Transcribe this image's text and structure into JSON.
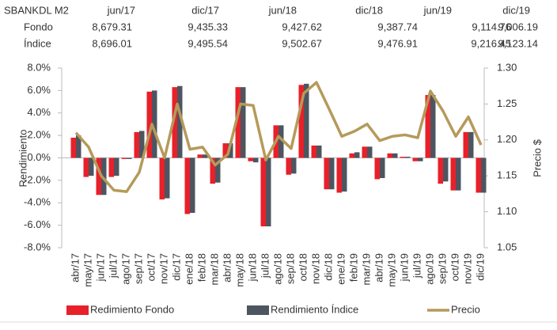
{
  "table": {
    "columns": [
      "SBANKDL M2",
      "jun/17",
      "dic/17",
      "jun/18",
      "dic/18",
      "jun/19",
      "dic/19"
    ],
    "rows": [
      [
        "Fondo",
        "8,679.31",
        "9,435.33",
        "9,427.62",
        "9,387.74",
        "9,114.76",
        "9,006.19"
      ],
      [
        "Índice",
        "8,696.01",
        "9,495.54",
        "9,502.67",
        "9,476.91",
        "9,216.45",
        "9,123.14"
      ]
    ]
  },
  "chart_data": {
    "type": "bar",
    "categories": [
      "abr/17",
      "may/17",
      "jun/17",
      "jul/17",
      "ago/17",
      "sep/17",
      "oct/17",
      "nov/17",
      "dic/17",
      "ene/18",
      "feb/18",
      "mar/18",
      "abr/18",
      "may/18",
      "jun/18",
      "jul/18",
      "ago/18",
      "sep/18",
      "oct/18",
      "nov/18",
      "dic/18",
      "ene/19",
      "feb/19",
      "mar/19",
      "abr/19",
      "may/19",
      "jun/19",
      "jul/19",
      "ago/19",
      "sep/19",
      "oct/19",
      "nov/19",
      "dic/19"
    ],
    "series": [
      {
        "name": "Redimiento Fondo",
        "type": "bar",
        "color": "#e8202a",
        "values": [
          1.8,
          -1.7,
          -3.3,
          -1.7,
          -0.1,
          2.3,
          5.9,
          -3.7,
          6.3,
          -5.0,
          0.3,
          -2.3,
          1.3,
          6.3,
          -0.3,
          -6.1,
          2.9,
          -1.5,
          6.5,
          1.1,
          -2.8,
          -3.1,
          0.4,
          1.0,
          -1.9,
          0.4,
          0.1,
          -0.3,
          5.6,
          -2.3,
          -2.9,
          2.3,
          -3.1
        ]
      },
      {
        "name": "Rendimiento Índice",
        "type": "bar",
        "color": "#4d5560",
        "values": [
          2.0,
          -1.6,
          -3.3,
          -1.6,
          -0.1,
          2.4,
          6.0,
          -3.6,
          6.4,
          -4.9,
          0.3,
          -2.2,
          1.3,
          6.3,
          -0.4,
          -6.1,
          2.9,
          -1.4,
          6.6,
          1.1,
          -2.8,
          -3.0,
          0.5,
          1.0,
          -1.8,
          0.4,
          0.1,
          -0.3,
          5.6,
          -2.1,
          -2.9,
          2.3,
          -3.1
        ]
      },
      {
        "name": "Precio",
        "type": "line",
        "axis": "y2",
        "color": "#b59a5a",
        "values": [
          1.21,
          1.19,
          1.15,
          1.13,
          1.128,
          1.155,
          1.222,
          1.175,
          1.25,
          1.187,
          1.19,
          1.165,
          1.18,
          1.25,
          1.248,
          1.172,
          1.205,
          1.188,
          1.265,
          1.28,
          1.243,
          1.205,
          1.212,
          1.222,
          1.199,
          1.205,
          1.207,
          1.203,
          1.268,
          1.24,
          1.205,
          1.232,
          1.193
        ]
      }
    ],
    "ylabel": "Rendimiento",
    "y2label": "Precio $",
    "ylim": [
      -8,
      8
    ],
    "yticks": [
      {
        "value": -8,
        "label": "-8.0%"
      },
      {
        "value": -6,
        "label": "-6.0%"
      },
      {
        "value": -4,
        "label": "-4.0%"
      },
      {
        "value": -2,
        "label": "-2.0%"
      },
      {
        "value": 0,
        "label": "0.0%"
      },
      {
        "value": 2,
        "label": "2.0%"
      },
      {
        "value": 4,
        "label": "4.0%"
      },
      {
        "value": 6,
        "label": "6.0%"
      },
      {
        "value": 8,
        "label": "8.0%"
      }
    ],
    "y2lim": [
      1.05,
      1.3
    ],
    "y2ticks": [
      1.05,
      {
        "value": 1.1,
        "label": "1.10"
      },
      1.15,
      {
        "value": 1.2,
        "label": "1.20"
      },
      1.25,
      {
        "value": 1.3,
        "label": "1.30"
      }
    ],
    "grid": false,
    "legend": "bottom"
  }
}
